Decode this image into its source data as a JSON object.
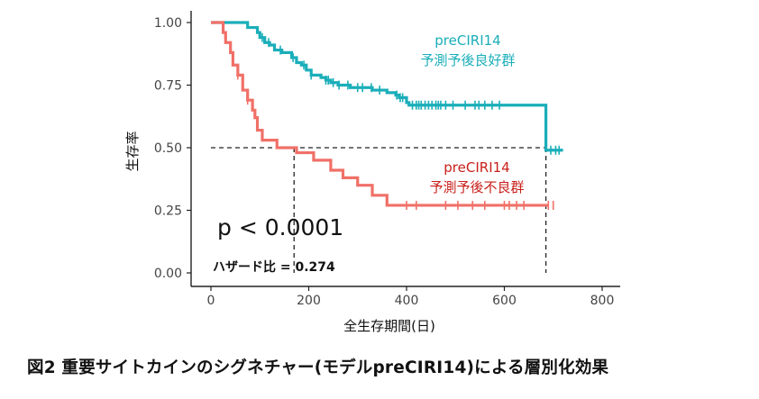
{
  "chart_data": {
    "type": "line",
    "subtype": "kaplan-meier",
    "xlabel": "全生存期間(日)",
    "ylabel": "生存率",
    "xlim": [
      0,
      800
    ],
    "ylim": [
      0,
      1
    ],
    "x_ticks": [
      "0",
      "200",
      "400",
      "600",
      "800"
    ],
    "y_ticks": [
      "0.00",
      "0.25",
      "0.50",
      "0.75",
      "1.00"
    ],
    "grid": false,
    "series": [
      {
        "name": "preCIRI14 予測予後良好群",
        "label_line1": "preCIRI14",
        "label_line2": "予測予後良好群",
        "color": "#1aaeb9",
        "steps": [
          [
            0,
            1.0
          ],
          [
            75,
            0.98
          ],
          [
            95,
            0.96
          ],
          [
            100,
            0.94
          ],
          [
            110,
            0.92
          ],
          [
            120,
            0.91
          ],
          [
            130,
            0.89
          ],
          [
            145,
            0.88
          ],
          [
            165,
            0.86
          ],
          [
            175,
            0.84
          ],
          [
            185,
            0.83
          ],
          [
            195,
            0.81
          ],
          [
            205,
            0.79
          ],
          [
            225,
            0.78
          ],
          [
            235,
            0.77
          ],
          [
            245,
            0.76
          ],
          [
            260,
            0.75
          ],
          [
            285,
            0.74
          ],
          [
            330,
            0.73
          ],
          [
            360,
            0.72
          ],
          [
            378,
            0.71
          ],
          [
            385,
            0.7
          ],
          [
            400,
            0.68
          ],
          [
            405,
            0.67
          ],
          [
            685,
            0.49
          ],
          [
            720,
            0.49
          ]
        ],
        "censor_x": [
          105,
          118,
          142,
          168,
          190,
          205,
          235,
          240,
          250,
          262,
          280,
          300,
          310,
          328,
          345,
          380,
          387,
          392,
          412,
          420,
          425,
          430,
          438,
          445,
          452,
          460,
          465,
          470,
          480,
          495,
          520,
          540,
          548,
          560,
          575,
          590,
          695,
          705,
          712
        ]
      },
      {
        "name": "preCIRI14 予測予後不良群",
        "label_line1": "preCIRI14",
        "label_line2": "予測予後不良群",
        "color": "#f07068",
        "steps": [
          [
            0,
            1.0
          ],
          [
            25,
            0.96
          ],
          [
            30,
            0.92
          ],
          [
            40,
            0.88
          ],
          [
            45,
            0.83
          ],
          [
            55,
            0.79
          ],
          [
            65,
            0.73
          ],
          [
            75,
            0.69
          ],
          [
            85,
            0.65
          ],
          [
            90,
            0.62
          ],
          [
            95,
            0.57
          ],
          [
            105,
            0.53
          ],
          [
            135,
            0.5
          ],
          [
            175,
            0.48
          ],
          [
            210,
            0.45
          ],
          [
            245,
            0.41
          ],
          [
            270,
            0.38
          ],
          [
            300,
            0.35
          ],
          [
            330,
            0.31
          ],
          [
            360,
            0.27
          ],
          [
            690,
            0.27
          ]
        ],
        "censor_x": [
          55,
          75,
          400,
          420,
          480,
          505,
          535,
          560,
          600,
          610,
          625,
          640,
          690,
          700
        ]
      }
    ],
    "reference_line_y": 0.5,
    "median_drop_x": [
      170,
      685
    ],
    "annotations": {
      "p_value": "p < 0.0001",
      "hazard_ratio": "ハザード比 = 0.274"
    }
  },
  "caption": "図2 重要サイトカインのシグネチャー(モデルpreCIRI14)による層別化効果"
}
